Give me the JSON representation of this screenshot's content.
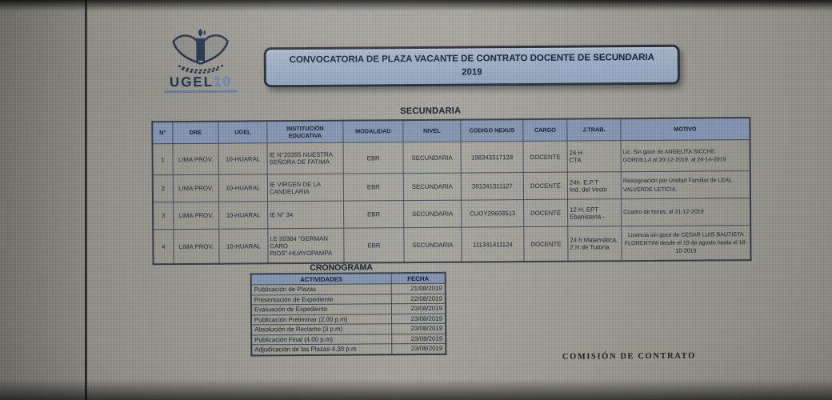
{
  "banner": {
    "line1": "CONVOCATORIA DE PLAZA VACANTE DE CONTRATO DOCENTE DE SECUNDARIA",
    "line2": "2019"
  },
  "logo": {
    "name": "UGEL",
    "number": "10"
  },
  "secundaria_table": {
    "section_title": "SECUNDARIA",
    "header_rows": [
      [
        "N°",
        "DRE",
        "UGEL",
        "INSTITUCIÓN\nEDUCATIVA",
        "MODALIDAD",
        "NIVEL",
        "CODIGO NEXUS",
        "CARGO",
        "J.TRAB.",
        "MOTIVO"
      ]
    ],
    "rows": [
      [
        "1",
        "LIMA PROV.",
        "10-HUARAL",
        "IE N°20395 NUESTRA\nSEÑORA DE FATIMA",
        "EBR",
        "SECUNDARIA",
        "198343317128",
        "DOCENTE",
        "24 H\nCTA",
        "Lic. Sin goce de ANGELITA SICCHE\nGORDILLA al 20-12-2019. al 24-14-2019"
      ],
      [
        "2",
        "LIMA PROV.",
        "10-HUARAL",
        "IE VIRGEN DE LA\nCANDELARIA",
        "EBR",
        "SECUNDARIA",
        "391341311127",
        "DOCENTE",
        "24h. E.P.T\nInd. del Vestir",
        "Reasignación por Unidad Familiar de LEAL\nVALVERDE LETICIA."
      ],
      [
        "3",
        "LIMA PROV.",
        "10-HUARAL",
        "IE N° 34",
        "EBR",
        "SECUNDARIA",
        "CUOY29603513",
        "DOCENTE",
        "12 H. EPT\nEbanisteria -",
        "Cuadro de horas, al 31-12-2019"
      ],
      [
        "4",
        "LIMA PROV.",
        "10-HUARAL",
        "I.E 20384 \"GERMAN CARO\nRIOS\"-HUAYOPAMPA",
        "EBR",
        "SECUNDARIA",
        "111341411124",
        "DOCENTE",
        "24 h Matemática,\n2 H de Tutoria",
        "Licencia sin goce de CESAR LUIS BAUTISTA\nFLORENTINI desde el 19 de agosto hasta el 18-\n10-2019"
      ]
    ]
  },
  "cronograma": {
    "section_title": "CRONOGRAMA",
    "header_rows": [
      [
        "ACTIVIDADES",
        "FECHA"
      ]
    ],
    "rows": [
      [
        "Publicación de Plazas",
        "21/08/2019"
      ],
      [
        "Presentación de Expediente",
        "22/08/2019"
      ],
      [
        "Evaluación de Expediente",
        "23/08/2019"
      ],
      [
        "Publicación  Preliminar  (2.00 p.m)",
        "23/08/2019"
      ],
      [
        "Absolución de Reclamo  (3  p.m)",
        "23/08/2019"
      ],
      [
        "Publicación Final   (4.00 p.m)",
        "23/08/2019"
      ],
      [
        "Adjudicación de las Plazas-4.30 p.m",
        "23/08/2019"
      ]
    ]
  },
  "footer": {
    "signature": "COMISIÓN DE CONTRATO"
  },
  "colors": {
    "table_header_fill": "#7e90ad",
    "banner_fill": "#a3b2c7",
    "banner_border": "#1f2835",
    "ink": "#242e3d",
    "logo_blue": "#5b87c5"
  }
}
